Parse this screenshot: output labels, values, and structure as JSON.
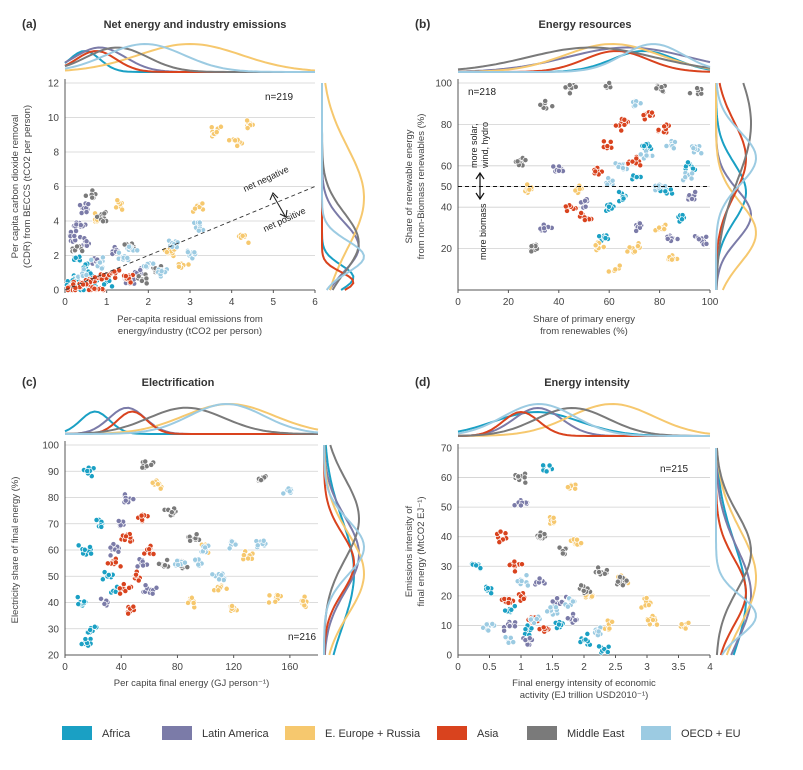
{
  "colors": {
    "Africa": "#1aa0c4",
    "Latin America": "#7b7ba8",
    "E. Europe + Russia": "#f6c86e",
    "Asia": "#d9431e",
    "Middle East": "#7a7a7a",
    "OECD + EU": "#9ccbe2"
  },
  "legend": [
    "Africa",
    "Latin America",
    "E. Europe + Russia",
    "Asia",
    "Middle East",
    "OECD + EU"
  ],
  "chart_data": [
    {
      "id": "a",
      "type": "scatter",
      "panel_label": "(a)",
      "title": "Net energy and industry emissions",
      "xlabel": [
        "Per-capita residual emissions from",
        "energy/industry (tCO2 per person)"
      ],
      "ylabel": [
        "Per capita carbon dioxide removal",
        "(CDR) from BECCS (tCO2 per person)"
      ],
      "xlim": [
        0,
        6
      ],
      "ylim": [
        0,
        12
      ],
      "xticks": [
        "0",
        "1",
        "2",
        "3",
        "4",
        "5",
        "6"
      ],
      "yticks": [
        "0",
        "2",
        "4",
        "6",
        "8",
        "10",
        "12"
      ],
      "n_label": "n=219",
      "annotations": [
        "net negative",
        "net positive"
      ],
      "clusters": {
        "Africa": [
          [
            0.2,
            0.6
          ],
          [
            0.5,
            1.3
          ],
          [
            0.7,
            0.4
          ],
          [
            0.3,
            1.8
          ],
          [
            1.0,
            0.5
          ],
          [
            0.1,
            0.2
          ],
          [
            0.4,
            0.1
          ],
          [
            0.6,
            0.9
          ]
        ],
        "Latin America": [
          [
            0.3,
            3.8
          ],
          [
            0.5,
            2.8
          ],
          [
            0.8,
            1.5
          ],
          [
            1.2,
            2.2
          ],
          [
            0.4,
            4.8
          ],
          [
            1.8,
            1.1
          ],
          [
            0.2,
            3.2
          ],
          [
            1.5,
            0.6
          ]
        ],
        "E. Europe + Russia": [
          [
            3.6,
            9.2
          ],
          [
            4.1,
            8.6
          ],
          [
            4.4,
            9.6
          ],
          [
            3.2,
            4.8
          ],
          [
            2.5,
            2.2
          ],
          [
            4.3,
            3.1
          ],
          [
            1.3,
            5.0
          ],
          [
            0.8,
            4.2
          ],
          [
            2.8,
            1.4
          ]
        ],
        "Asia": [
          [
            0.3,
            0.3
          ],
          [
            0.6,
            0.5
          ],
          [
            0.9,
            0.8
          ],
          [
            1.2,
            1.0
          ],
          [
            0.5,
            0.2
          ],
          [
            0.8,
            0.1
          ],
          [
            1.5,
            0.7
          ],
          [
            0.2,
            0.1
          ]
        ],
        "Middle East": [
          [
            0.6,
            5.5
          ],
          [
            0.9,
            4.2
          ],
          [
            1.6,
            2.5
          ],
          [
            1.9,
            0.6
          ],
          [
            2.2,
            1.3
          ],
          [
            0.3,
            2.3
          ]
        ],
        "OECD + EU": [
          [
            0.8,
            1.6
          ],
          [
            1.4,
            1.8
          ],
          [
            2.0,
            1.5
          ],
          [
            2.6,
            2.6
          ],
          [
            3.0,
            2.1
          ],
          [
            1.6,
            2.3
          ],
          [
            2.3,
            1.0
          ],
          [
            0.4,
            0.9
          ],
          [
            3.2,
            3.6
          ]
        ]
      }
    },
    {
      "id": "b",
      "type": "scatter",
      "panel_label": "(b)",
      "title": "Energy resources",
      "xlabel": [
        "Share of primary energy",
        "from renewables (%)"
      ],
      "ylabel": [
        "Share of renewable energy",
        "from non-Biomass renewables (%)"
      ],
      "xlim": [
        0,
        100
      ],
      "ylim": [
        0,
        100
      ],
      "xticks": [
        "0",
        "20",
        "40",
        "60",
        "80",
        "100"
      ],
      "yticks": [
        "20",
        "40",
        "50",
        "60",
        "80",
        "100"
      ],
      "n_label": "n=218",
      "annotations": [
        "more solar,",
        "wind, hydro",
        "more biomass"
      ],
      "clusters": {
        "Africa": [
          [
            60,
            40
          ],
          [
            70,
            55
          ],
          [
            82,
            48
          ],
          [
            88,
            35
          ],
          [
            75,
            70
          ],
          [
            58,
            25
          ],
          [
            92,
            60
          ],
          [
            65,
            45
          ]
        ],
        "Latin America": [
          [
            35,
            30
          ],
          [
            50,
            42
          ],
          [
            85,
            25
          ],
          [
            93,
            45
          ],
          [
            72,
            30
          ],
          [
            40,
            58
          ],
          [
            97,
            24
          ]
        ],
        "E. Europe + Russia": [
          [
            62,
            10
          ],
          [
            70,
            20
          ],
          [
            80,
            30
          ],
          [
            48,
            48
          ],
          [
            28,
            48
          ],
          [
            86,
            15
          ],
          [
            55,
            22
          ]
        ],
        "Asia": [
          [
            45,
            40
          ],
          [
            60,
            70
          ],
          [
            65,
            80
          ],
          [
            75,
            85
          ],
          [
            70,
            62
          ],
          [
            55,
            58
          ],
          [
            82,
            78
          ],
          [
            50,
            35
          ]
        ],
        "Middle East": [
          [
            25,
            62
          ],
          [
            35,
            90
          ],
          [
            45,
            98
          ],
          [
            60,
            99
          ],
          [
            80,
            98
          ],
          [
            95,
            96
          ],
          [
            30,
            20
          ]
        ],
        "OECD + EU": [
          [
            65,
            60
          ],
          [
            75,
            65
          ],
          [
            85,
            70
          ],
          [
            90,
            55
          ],
          [
            80,
            50
          ],
          [
            70,
            90
          ],
          [
            95,
            68
          ],
          [
            60,
            52
          ]
        ]
      }
    },
    {
      "id": "c",
      "type": "scatter",
      "panel_label": "(c)",
      "title": "Electrification",
      "xlabel": [
        "Per capita final energy (GJ person⁻¹)"
      ],
      "ylabel": [
        "Electricity share of final energy (%)"
      ],
      "xlim": [
        0,
        180
      ],
      "ylim": [
        20,
        100
      ],
      "xticks": [
        "0",
        "40",
        "80",
        "120",
        "160"
      ],
      "yticks": [
        "20",
        "30",
        "40",
        "50",
        "60",
        "70",
        "80",
        "90",
        "100"
      ],
      "n_label": "n=216",
      "annotations": [],
      "clusters": {
        "Africa": [
          [
            12,
            40
          ],
          [
            15,
            60
          ],
          [
            18,
            90
          ],
          [
            25,
            70
          ],
          [
            30,
            50
          ],
          [
            20,
            30
          ],
          [
            16,
            24
          ],
          [
            35,
            45
          ]
        ],
        "Latin America": [
          [
            30,
            40
          ],
          [
            45,
            80
          ],
          [
            55,
            55
          ],
          [
            40,
            70
          ],
          [
            60,
            45
          ],
          [
            35,
            60
          ]
        ],
        "E. Europe + Russia": [
          [
            90,
            40
          ],
          [
            110,
            45
          ],
          [
            130,
            58
          ],
          [
            150,
            42
          ],
          [
            170,
            40
          ],
          [
            120,
            38
          ],
          [
            100,
            60
          ],
          [
            65,
            85
          ]
        ],
        "Asia": [
          [
            35,
            55
          ],
          [
            45,
            65
          ],
          [
            50,
            50
          ],
          [
            55,
            72
          ],
          [
            42,
            45
          ],
          [
            60,
            60
          ],
          [
            48,
            38
          ]
        ],
        "Middle East": [
          [
            58,
            93
          ],
          [
            75,
            75
          ],
          [
            90,
            65
          ],
          [
            140,
            88
          ],
          [
            70,
            55
          ],
          [
            85,
            55
          ]
        ],
        "OECD + EU": [
          [
            80,
            55
          ],
          [
            100,
            60
          ],
          [
            120,
            62
          ],
          [
            140,
            62
          ],
          [
            160,
            83
          ],
          [
            110,
            50
          ],
          [
            95,
            55
          ]
        ]
      }
    },
    {
      "id": "d",
      "type": "scatter",
      "panel_label": "(d)",
      "title": "Energy intensity",
      "xlabel": [
        "Final energy intensity of economic",
        "activity (EJ trillion USD2010⁻¹)"
      ],
      "ylabel": [
        "Emissions intensity of",
        "final energy (MtCO2 EJ⁻¹)"
      ],
      "xlim": [
        0,
        4
      ],
      "ylim": [
        0,
        70
      ],
      "xticks": [
        "0",
        "0.5",
        "1",
        "1.5",
        "2",
        "2.5",
        "3",
        "3.5",
        "4"
      ],
      "yticks": [
        "0",
        "10",
        "20",
        "30",
        "40",
        "50",
        "60",
        "70"
      ],
      "n_label": "n=215",
      "annotations": [],
      "clusters": {
        "Africa": [
          [
            0.3,
            30
          ],
          [
            0.5,
            22
          ],
          [
            0.8,
            15
          ],
          [
            1.1,
            8
          ],
          [
            1.4,
            63
          ],
          [
            1.6,
            10
          ],
          [
            2.0,
            5
          ],
          [
            2.3,
            2
          ]
        ],
        "Latin America": [
          [
            0.8,
            10
          ],
          [
            1.0,
            52
          ],
          [
            1.3,
            25
          ],
          [
            1.6,
            18
          ],
          [
            1.1,
            5
          ],
          [
            1.8,
            12
          ]
        ],
        "E. Europe + Russia": [
          [
            1.8,
            57
          ],
          [
            1.5,
            45
          ],
          [
            2.1,
            20
          ],
          [
            2.6,
            25
          ],
          [
            3.0,
            18
          ],
          [
            1.9,
            38
          ],
          [
            2.4,
            10
          ],
          [
            3.1,
            12
          ],
          [
            3.6,
            10
          ]
        ],
        "Asia": [
          [
            0.7,
            40
          ],
          [
            0.9,
            30
          ],
          [
            1.0,
            20
          ],
          [
            1.2,
            12
          ],
          [
            1.4,
            8
          ],
          [
            0.8,
            18
          ]
        ],
        "Middle East": [
          [
            1.0,
            60
          ],
          [
            1.3,
            40
          ],
          [
            1.7,
            35
          ],
          [
            2.0,
            22
          ],
          [
            2.3,
            28
          ],
          [
            2.6,
            25
          ]
        ],
        "OECD + EU": [
          [
            0.5,
            10
          ],
          [
            0.8,
            5
          ],
          [
            1.2,
            12
          ],
          [
            1.5,
            15
          ],
          [
            1.8,
            18
          ],
          [
            2.2,
            8
          ],
          [
            1.0,
            25
          ]
        ]
      }
    }
  ]
}
